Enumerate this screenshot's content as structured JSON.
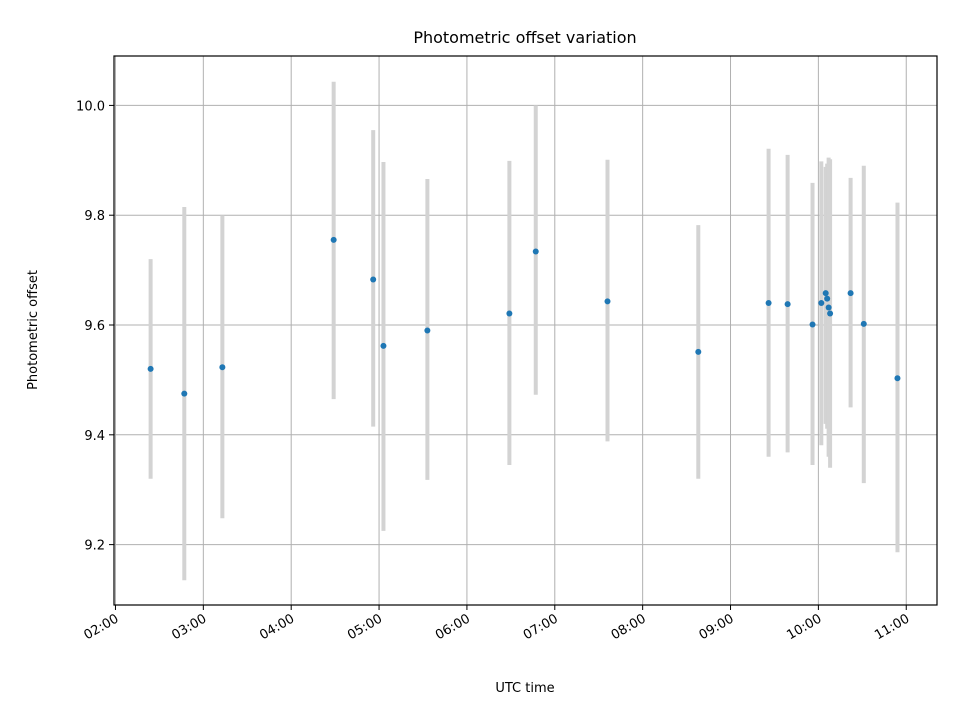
{
  "chart_data": {
    "type": "scatter",
    "title": "Photometric offset variation",
    "xlabel": "UTC time",
    "ylabel": "Photometric offset",
    "xlim": [
      "01:59",
      "11:21"
    ],
    "ylim": [
      9.09,
      10.09
    ],
    "x_ticks": [
      "02:00",
      "03:00",
      "04:00",
      "05:00",
      "06:00",
      "07:00",
      "08:00",
      "09:00",
      "10:00",
      "11:00"
    ],
    "y_ticks": [
      "9.2",
      "9.4",
      "9.6",
      "9.8",
      "10.0"
    ],
    "grid": true,
    "marker_color": "#1f77b4",
    "errorbar_color": "#d3d3d3",
    "points": [
      {
        "t": "02:24",
        "y": 9.52,
        "ylo": 9.32,
        "yhi": 9.72
      },
      {
        "t": "02:47",
        "y": 9.475,
        "ylo": 9.135,
        "yhi": 9.815
      },
      {
        "t": "03:13",
        "y": 9.523,
        "ylo": 9.248,
        "yhi": 9.8
      },
      {
        "t": "04:29",
        "y": 9.755,
        "ylo": 9.465,
        "yhi": 10.043
      },
      {
        "t": "04:56",
        "y": 9.683,
        "ylo": 9.415,
        "yhi": 9.955
      },
      {
        "t": "05:03",
        "y": 9.562,
        "ylo": 9.225,
        "yhi": 9.897
      },
      {
        "t": "05:33",
        "y": 9.59,
        "ylo": 9.318,
        "yhi": 9.866
      },
      {
        "t": "06:29",
        "y": 9.621,
        "ylo": 9.345,
        "yhi": 9.899
      },
      {
        "t": "06:47",
        "y": 9.734,
        "ylo": 9.473,
        "yhi": 10.0
      },
      {
        "t": "07:36",
        "y": 9.643,
        "ylo": 9.388,
        "yhi": 9.901
      },
      {
        "t": "08:38",
        "y": 9.551,
        "ylo": 9.32,
        "yhi": 9.782
      },
      {
        "t": "09:26",
        "y": 9.64,
        "ylo": 9.36,
        "yhi": 9.921
      },
      {
        "t": "09:39",
        "y": 9.638,
        "ylo": 9.368,
        "yhi": 9.91
      },
      {
        "t": "09:56",
        "y": 9.601,
        "ylo": 9.345,
        "yhi": 9.859
      },
      {
        "t": "10:02",
        "y": 9.64,
        "ylo": 9.381,
        "yhi": 9.898
      },
      {
        "t": "10:05",
        "y": 9.658,
        "ylo": 9.42,
        "yhi": 9.888
      },
      {
        "t": "10:06",
        "y": 9.648,
        "ylo": 9.411,
        "yhi": 9.894
      },
      {
        "t": "10:07",
        "y": 9.632,
        "ylo": 9.36,
        "yhi": 9.905
      },
      {
        "t": "10:08",
        "y": 9.621,
        "ylo": 9.34,
        "yhi": 9.902
      },
      {
        "t": "10:22",
        "y": 9.658,
        "ylo": 9.45,
        "yhi": 9.868
      },
      {
        "t": "10:31",
        "y": 9.602,
        "ylo": 9.312,
        "yhi": 9.89
      },
      {
        "t": "10:54",
        "y": 9.503,
        "ylo": 9.186,
        "yhi": 9.823
      }
    ]
  }
}
